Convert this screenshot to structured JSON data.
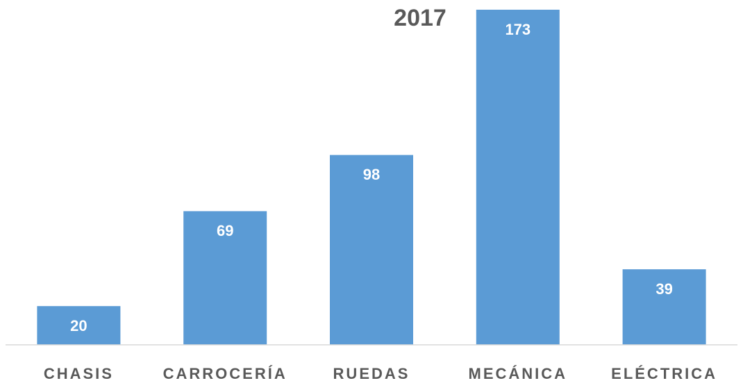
{
  "chart_data": {
    "type": "bar",
    "title": "2017",
    "categories": [
      "CHASIS",
      "CARROCERÍA",
      "RUEDAS",
      "MECÁNICA",
      "ELÉCTRICA"
    ],
    "values": [
      20,
      69,
      98,
      173,
      39
    ],
    "color": "#5b9bd5"
  }
}
